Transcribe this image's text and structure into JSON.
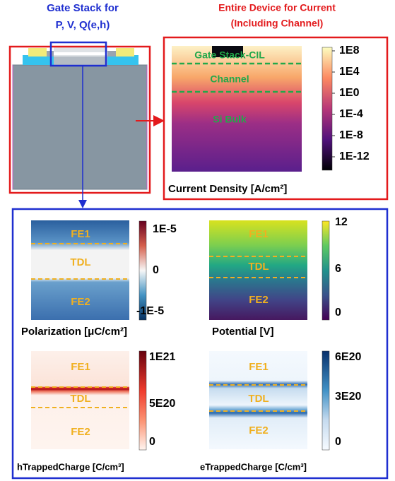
{
  "left_title": [
    "Gate Stack for",
    "P, V, Q(e,h)"
  ],
  "right_title": [
    "Entire Device for Current",
    "(Including Channel)"
  ],
  "current": {
    "regions": [
      "Gate Stack-CIL",
      "Channel",
      "Si Bulk"
    ],
    "colorbar": [
      "1E8",
      "1E4",
      "1E0",
      "1E-4",
      "1E-8",
      "1E-12"
    ],
    "caption": "Current Density [A/cm²]"
  },
  "panels": [
    {
      "regions": [
        "FE1",
        "TDL",
        "FE2"
      ],
      "colorbar": [
        "1E-5",
        "0",
        "-1E-5"
      ],
      "caption": "Polarization [μC/cm²]"
    },
    {
      "regions": [
        "FE1",
        "TDL",
        "FE2"
      ],
      "colorbar": [
        "12",
        "6",
        "0"
      ],
      "caption": "Potential [V]"
    },
    {
      "regions": [
        "FE1",
        "TDL",
        "FE2"
      ],
      "colorbar": [
        "1E21",
        "5E20",
        "0"
      ],
      "caption": "hTrappedCharge [C/cm³]"
    },
    {
      "regions": [
        "FE1",
        "TDL",
        "FE2"
      ],
      "colorbar": [
        "6E20",
        "3E20",
        "0"
      ],
      "caption": "eTrappedCharge [C/cm³]"
    }
  ]
}
